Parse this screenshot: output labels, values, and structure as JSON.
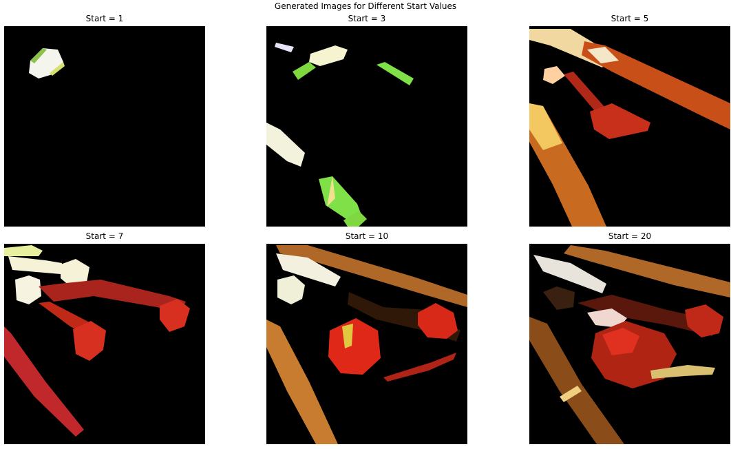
{
  "figure": {
    "title": "Generated Images for Different Start Values",
    "panels": [
      {
        "label": "Start = 1"
      },
      {
        "label": "Start = 3"
      },
      {
        "label": "Start = 5"
      },
      {
        "label": "Start = 7"
      },
      {
        "label": "Start = 10"
      },
      {
        "label": "Start = 20"
      }
    ]
  }
}
